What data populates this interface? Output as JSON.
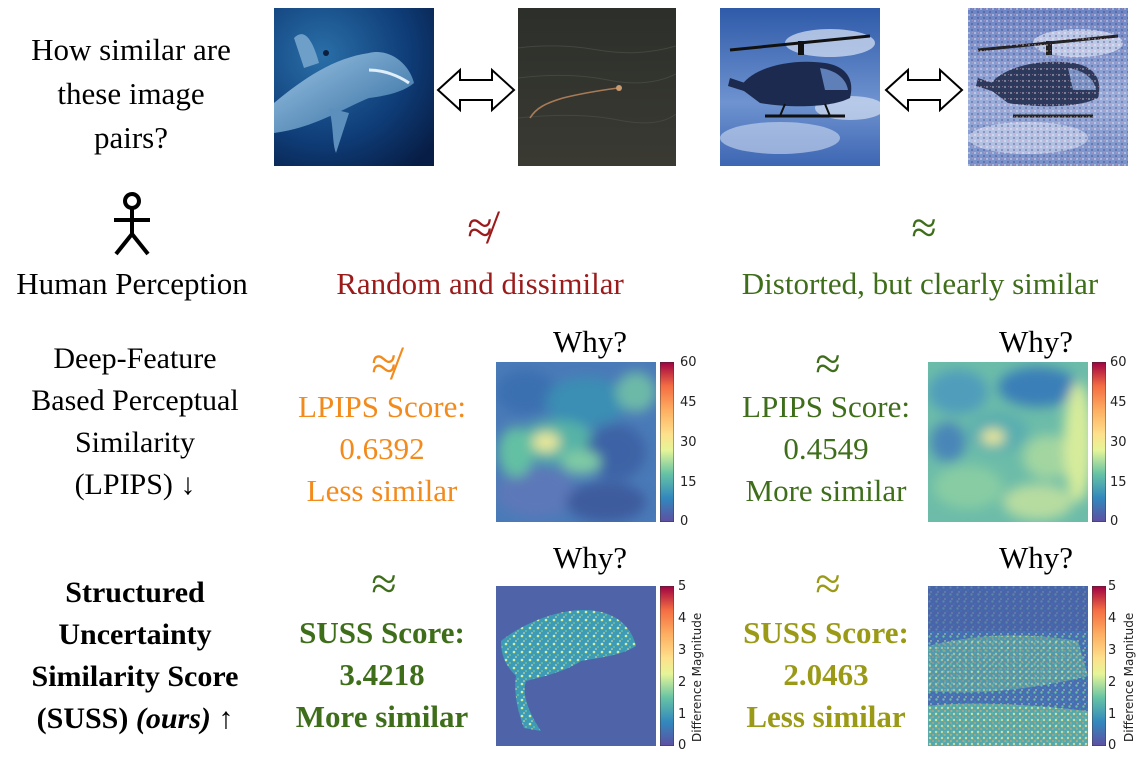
{
  "question": {
    "line1": "How similar are",
    "line2": "these image",
    "line3": "pairs?"
  },
  "icons": [
    "shark-photo",
    "dark-water-photo",
    "helicopter-photo",
    "noisy-helicopter-photo",
    "double-arrow-icon",
    "stick-figure-icon"
  ],
  "human": {
    "label": "Human Perception",
    "pair1": {
      "symbol": "≉",
      "text": "Random and dissimilar"
    },
    "pair2": {
      "symbol": "≈",
      "text": "Distorted, but clearly similar"
    }
  },
  "lpips": {
    "label_line1": "Deep-Feature",
    "label_line2": "Based Perceptual",
    "label_line3": "Similarity",
    "label_line4": "(LPIPS) ↓",
    "pair1": {
      "symbol": "≉",
      "title": "LPIPS Score:",
      "value": "0.6392",
      "verdict": "Less similar",
      "why": "Why?"
    },
    "pair2": {
      "symbol": "≈",
      "title": "LPIPS Score:",
      "value": "0.4549",
      "verdict": "More similar",
      "why": "Why?"
    },
    "colorbar_ticks": [
      "60",
      "45",
      "30",
      "15",
      "0"
    ]
  },
  "suss": {
    "label_line1": "Structured",
    "label_line2": "Uncertainty",
    "label_line3": "Similarity Score",
    "label_line4a": "(SUSS) ",
    "label_line4b": "(ours)",
    "label_line4c": " ↑",
    "pair1": {
      "symbol": "≈",
      "title": "SUSS Score:",
      "value": "3.4218",
      "verdict": "More similar",
      "why": "Why?"
    },
    "pair2": {
      "symbol": "≈",
      "title": "SUSS Score:",
      "value": "2.0463",
      "verdict": "Less similar",
      "why": "Why?"
    },
    "colorbar_ticks": [
      "5",
      "4",
      "3",
      "2",
      "1",
      "0"
    ],
    "colorbar_title": "Difference Magnitude"
  },
  "colors": {
    "red": "#9b1b1b",
    "green": "#3f6e1b",
    "orange": "#f28a1c",
    "olive": "#9a9a17"
  }
}
